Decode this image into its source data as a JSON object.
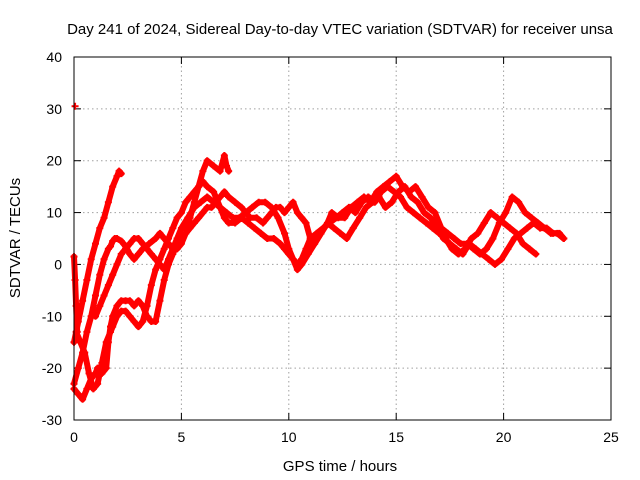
{
  "chart_data": {
    "type": "scatter",
    "title": "Day 241 of 2024, Sidereal Day-to-day VTEC variation (SDTVAR) for receiver unsa",
    "xlabel": "GPS time / hours",
    "ylabel": "SDTVAR / TECUs",
    "xlim": [
      0,
      25
    ],
    "ylim": [
      -30,
      40
    ],
    "xticks": [
      0,
      5,
      10,
      15,
      20,
      25
    ],
    "yticks": [
      -30,
      -20,
      -10,
      0,
      10,
      20,
      30,
      40
    ],
    "grid": true,
    "legend": "none",
    "marker": "+",
    "color": "#ff0000",
    "series": [
      {
        "name": "trace-1",
        "x": [
          0.0,
          0.05,
          0.1,
          0.15
        ],
        "y": [
          1.5,
          -3,
          -8,
          -13
        ]
      },
      {
        "name": "trace-2",
        "x": [
          0.0,
          0.2,
          0.4,
          0.6,
          0.8,
          1.0,
          1.2,
          1.4,
          1.6,
          1.8,
          2.0,
          2.1,
          2.2
        ],
        "y": [
          -15,
          -11,
          -7,
          -3,
          1,
          4,
          7,
          9,
          12,
          15,
          17,
          18,
          17.5
        ]
      },
      {
        "name": "trace-3",
        "x": [
          0.0,
          0.2,
          0.4,
          0.6,
          0.8,
          1.0,
          1.2,
          1.4,
          1.6,
          1.7,
          1.8,
          1.9,
          2.0,
          2.2,
          2.4,
          2.6,
          2.8,
          3.0,
          3.2,
          3.5,
          3.8,
          4.0,
          4.2,
          4.4,
          4.6,
          4.8,
          5.0,
          5.2,
          5.4,
          5.6,
          5.8,
          6.0,
          6.2,
          6.5,
          6.8,
          7.0,
          7.1,
          7.2
        ],
        "y": [
          -23,
          -20,
          -17,
          -13,
          -10,
          -6,
          -2,
          1,
          3,
          3.5,
          4.5,
          5,
          5,
          4.5,
          3.5,
          2,
          1,
          2,
          3,
          4,
          5,
          6,
          5,
          4,
          3,
          3,
          4,
          6,
          9,
          12,
          15,
          18,
          20,
          19,
          18,
          21,
          19,
          18
        ]
      },
      {
        "name": "trace-4",
        "x": [
          0.0,
          0.2,
          0.4,
          0.6,
          0.8,
          1.0,
          1.1,
          1.3,
          1.5,
          1.6,
          1.7,
          1.8,
          2.0,
          2.2,
          2.4,
          2.6,
          2.8,
          3.0,
          3.2,
          3.4,
          3.6,
          3.8,
          4.0,
          4.2,
          4.4,
          4.6,
          4.8,
          5.0,
          5.2,
          5.4,
          5.6,
          5.8,
          6.0,
          6.2,
          6.4,
          6.6,
          6.8,
          7.0,
          7.2,
          7.5,
          7.8,
          8.0,
          8.2,
          8.5,
          8.8,
          9.0,
          9.2,
          9.4,
          9.6,
          9.8,
          10.0,
          10.2,
          10.4,
          10.6,
          10.8,
          11.0,
          11.2,
          11.5,
          11.8,
          12.0,
          12.3,
          12.6,
          12.9,
          13.2,
          13.5,
          13.8,
          14.1,
          14.4,
          14.7,
          15.0,
          15.3,
          15.6,
          15.9,
          16.2,
          16.5,
          16.8,
          17.1,
          17.4,
          17.7,
          18.0,
          18.3,
          18.6,
          18.9,
          19.2,
          19.5,
          19.8,
          20.1,
          20.4,
          20.7,
          21.0,
          21.3,
          21.6,
          21.9,
          22.2,
          22.5,
          22.8
        ],
        "y": [
          -24,
          -25,
          -26,
          -24,
          -22,
          -21,
          -20,
          -21,
          -20,
          -15,
          -12,
          -10,
          -8,
          -7,
          -7,
          -7,
          -8,
          -7,
          -8,
          -10,
          -11,
          -11,
          -7,
          -3,
          0,
          2,
          4,
          5,
          6,
          7,
          8,
          9,
          10,
          11,
          11,
          12,
          13,
          14,
          13,
          12,
          11,
          10,
          9,
          9,
          8,
          9,
          10,
          11,
          11,
          10,
          11,
          12,
          10,
          9,
          8,
          5,
          4,
          6,
          8,
          10,
          9,
          9,
          11,
          12,
          13,
          12,
          14,
          15,
          16,
          17,
          15,
          14,
          15,
          13,
          11,
          10,
          7,
          6,
          5,
          4,
          4,
          3,
          2,
          3,
          5,
          8,
          10,
          13,
          12,
          10,
          9,
          8,
          7,
          6,
          6,
          5
        ]
      },
      {
        "name": "trace-5",
        "x": [
          0.1,
          0.3,
          0.5,
          0.7,
          0.9,
          1.1,
          1.3,
          1.5,
          1.7,
          1.8,
          2.0,
          2.2,
          2.4,
          2.6,
          2.8,
          3.0,
          3.2,
          3.4,
          3.6,
          3.8,
          4.0,
          4.2,
          4.4,
          4.6,
          4.8,
          5.0,
          5.2,
          5.4,
          5.6,
          5.8,
          6.0,
          6.2,
          6.5,
          6.8,
          7.0,
          7.2,
          7.5,
          7.8,
          8.1,
          8.4,
          8.7,
          9.0,
          9.3,
          9.6,
          9.8,
          10.0,
          10.2,
          10.4,
          10.6,
          10.8,
          11.0,
          11.3,
          11.6,
          11.9,
          12.2,
          12.5,
          12.8,
          13.1,
          13.4,
          13.7,
          14.0,
          14.3,
          14.6,
          14.9,
          15.2,
          15.5,
          15.8,
          16.1,
          16.4,
          16.7,
          17.0,
          17.3,
          17.6,
          17.9,
          18.2,
          18.5,
          18.8,
          19.1,
          19.4,
          19.7,
          20.0,
          20.3,
          20.6,
          20.9,
          21.2,
          21.5
        ],
        "y": [
          -13,
          -15,
          -17,
          -21,
          -24,
          -23,
          -19,
          -15,
          -13,
          -12,
          -10,
          -9,
          -9,
          -10,
          -11,
          -12,
          -11,
          -8,
          -4,
          -1,
          1,
          3,
          5,
          7,
          9,
          10,
          12,
          13,
          14,
          15,
          16,
          15,
          14,
          11,
          9,
          8,
          8,
          9,
          8,
          7,
          6,
          5,
          5,
          4,
          3,
          2,
          1,
          0,
          1,
          3,
          5,
          6,
          7,
          8,
          9,
          10,
          11,
          10,
          12,
          13,
          12,
          14,
          15,
          14,
          13,
          11,
          10,
          9,
          8,
          7,
          6,
          5,
          3,
          2,
          3,
          5,
          6,
          8,
          10,
          9,
          8,
          7,
          6,
          4,
          3,
          2
        ]
      },
      {
        "name": "trace-6",
        "x": [
          1.0,
          1.2,
          1.4,
          1.6,
          1.8,
          2.0,
          2.2,
          2.4,
          2.6,
          2.8,
          3.0,
          3.2,
          3.4,
          3.6,
          3.8,
          4.0,
          4.2,
          4.4,
          4.6,
          4.8,
          5.0,
          5.3,
          5.6,
          5.9,
          6.2,
          6.5,
          6.8,
          7.1,
          7.4,
          7.7,
          8.0,
          8.3,
          8.6,
          8.9,
          9.2,
          9.5,
          9.8,
          10.0,
          10.2,
          10.4,
          10.6,
          10.9,
          11.2,
          11.5,
          11.8,
          12.1,
          12.4,
          12.7,
          13.0,
          13.3,
          13.6,
          13.9,
          14.2,
          14.5,
          14.8,
          15.1,
          15.4,
          15.7,
          16.0,
          16.3,
          16.6,
          16.9,
          17.2,
          17.5,
          17.8,
          18.1,
          18.4,
          18.7,
          19.0,
          19.3,
          19.6,
          19.9,
          20.2,
          20.5,
          20.8,
          21.1,
          21.4,
          21.7,
          22.0,
          22.3,
          22.6,
          22.8
        ],
        "y": [
          -10,
          -8,
          -6,
          -4,
          -2,
          0,
          2,
          3,
          4,
          5,
          5,
          4,
          3,
          2,
          1,
          0,
          -1,
          1,
          3,
          5,
          7,
          9,
          11,
          12,
          13,
          12,
          11,
          10,
          9,
          9,
          10,
          11,
          12,
          12,
          11,
          9,
          6,
          3,
          1,
          -1,
          0,
          2,
          4,
          6,
          8,
          7,
          6,
          5,
          7,
          9,
          11,
          12,
          13,
          11,
          12,
          14,
          15,
          13,
          12,
          10,
          9,
          7,
          5,
          4,
          3,
          2,
          4,
          3,
          2,
          1,
          0,
          1,
          3,
          5,
          6,
          7,
          8,
          7,
          7,
          6,
          6,
          5
        ]
      },
      {
        "name": "trace-7",
        "x": [
          0.05
        ],
        "y": [
          30.5
        ]
      }
    ]
  }
}
